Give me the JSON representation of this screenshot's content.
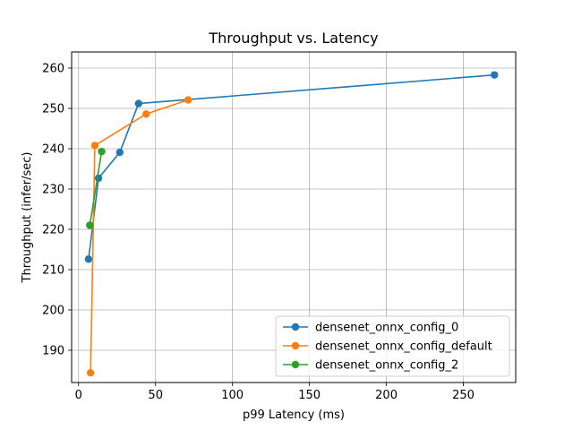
{
  "chart_data": {
    "type": "line",
    "title": "Throughput vs. Latency",
    "xlabel": "p99 Latency (ms)",
    "ylabel": "Throughput (infer/sec)",
    "xlim": [
      -4.5,
      284
    ],
    "ylim": [
      182.0,
      264.0
    ],
    "xticks": [
      0,
      50,
      100,
      150,
      200,
      250
    ],
    "yticks": [
      190,
      200,
      210,
      220,
      230,
      240,
      250,
      260
    ],
    "grid": true,
    "legend_position": "lower-right",
    "series": [
      {
        "name": "densenet_onnx_config_0",
        "color": "#1f77b4",
        "marker": "circle",
        "points": [
          [
            6.5,
            212.6
          ],
          [
            13.0,
            232.7
          ],
          [
            26.8,
            239.1
          ],
          [
            39.0,
            251.2
          ],
          [
            270.2,
            258.3
          ]
        ]
      },
      {
        "name": "densenet_onnx_config_default",
        "color": "#ff7f0e",
        "marker": "circle",
        "points": [
          [
            7.8,
            184.4
          ],
          [
            10.6,
            240.8
          ],
          [
            43.9,
            248.6
          ],
          [
            71.2,
            252.1
          ]
        ]
      },
      {
        "name": "densenet_onnx_config_2",
        "color": "#2ca02c",
        "marker": "circle",
        "points": [
          [
            7.3,
            221.0
          ],
          [
            15.0,
            239.3
          ]
        ]
      }
    ]
  }
}
